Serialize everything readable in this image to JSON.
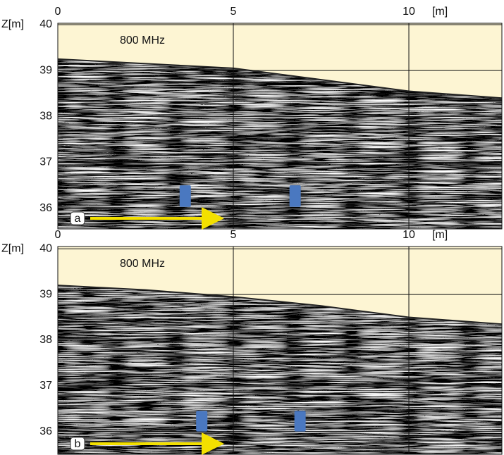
{
  "chart_data": [
    {
      "type": "radargram",
      "panel_label": "a",
      "annotation": "800 MHz",
      "xlabel": "[m]",
      "ylabel": "Z[m]",
      "xlim": [
        0,
        12.65
      ],
      "ylim": [
        35.55,
        40.03
      ],
      "xticks": [
        0,
        5,
        10
      ],
      "yticks": [
        36,
        37,
        38,
        39,
        40
      ],
      "grid": true,
      "surface": {
        "x": [
          0,
          2.5,
          5,
          7.5,
          10,
          12.65
        ],
        "values": [
          39.25,
          39.15,
          39.05,
          38.8,
          38.55,
          38.4
        ]
      },
      "markers": {
        "x": [
          3.63,
          6.76
        ],
        "ylow": [
          36.03,
          36.03
        ],
        "yhigh": [
          36.5,
          36.5
        ]
      },
      "marker_color": "#4a78c0"
    },
    {
      "type": "radargram",
      "panel_label": "b",
      "annotation": "800 MHz",
      "xlabel": "[m]",
      "ylabel": "Z[m]",
      "xlim": [
        0,
        12.65
      ],
      "ylim": [
        35.5,
        40.05
      ],
      "xticks": [
        0,
        5,
        10
      ],
      "yticks": [
        36,
        37,
        38,
        39,
        40
      ],
      "grid": true,
      "surface": {
        "x": [
          0,
          2.5,
          5,
          7.5,
          10,
          12.65
        ],
        "values": [
          39.2,
          39.1,
          38.95,
          38.75,
          38.5,
          38.35
        ]
      },
      "markers": {
        "x": [
          4.1,
          6.9
        ],
        "ylow": [
          36.0,
          36.0
        ],
        "yhigh": [
          36.45,
          36.45
        ]
      },
      "marker_color": "#4a78c0"
    }
  ]
}
